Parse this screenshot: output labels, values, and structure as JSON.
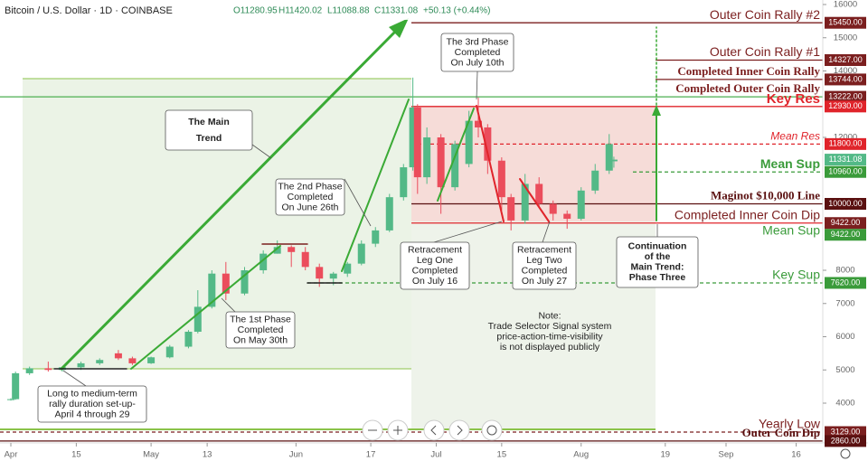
{
  "chart_data": {
    "type": "candlestick",
    "header": {
      "symbol": "Bitcoin / U.S. Dollar · 1D · COINBASE",
      "open": "O11280.95",
      "high": "H11420.02",
      "low": "L11088.88",
      "close": "C11331.08",
      "change": "+50.13 (+0.44%)"
    },
    "x": [
      "Apr 1",
      "Apr 2",
      "Apr 5",
      "Apr 9",
      "Apr 12",
      "Apr 16",
      "Apr 20",
      "Apr 24",
      "Apr 27",
      "May 1",
      "May 5",
      "May 9",
      "May 11",
      "May 14",
      "May 17",
      "May 21",
      "May 25",
      "May 28",
      "May 31",
      "Jun 3",
      "Jun 6",
      "Jun 9",
      "Jun 12",
      "Jun 15",
      "Jun 18",
      "Jun 21",
      "Jun 24",
      "Jun 26",
      "Jun 27",
      "Jun 29",
      "Jul 2",
      "Jul 5",
      "Jul 8",
      "Jul 10",
      "Jul 12",
      "Jul 15",
      "Jul 17",
      "Jul 20",
      "Jul 23",
      "Jul 26",
      "Jul 29",
      "Aug 1",
      "Aug 4",
      "Aug 7",
      "Aug 8"
    ],
    "open": [
      4100,
      4120,
      4900,
      5050,
      5000,
      5080,
      5200,
      5500,
      5350,
      5200,
      5380,
      5700,
      6150,
      6900,
      7900,
      7300,
      8000,
      8500,
      8700,
      8550,
      8100,
      7750,
      7900,
      8200,
      8800,
      9200,
      10200,
      11100,
      12900,
      10800,
      12000,
      10500,
      11200,
      12500,
      12300,
      11300,
      10200,
      9500,
      10600,
      10000,
      9700,
      9550,
      10400,
      11000,
      11280.95
    ],
    "high": [
      4150,
      4950,
      5100,
      5250,
      5100,
      5250,
      5350,
      5600,
      5400,
      5400,
      5750,
      6200,
      7400,
      8000,
      8250,
      8100,
      8600,
      8900,
      8750,
      8700,
      8200,
      7950,
      8250,
      8900,
      9300,
      10300,
      11200,
      13800,
      13000,
      12300,
      12100,
      11900,
      12800,
      13200,
      12400,
      11400,
      10300,
      10900,
      10800,
      10100,
      9800,
      10500,
      11200,
      12100,
      11420.02
    ],
    "low": [
      4080,
      4100,
      4850,
      4950,
      4950,
      5000,
      5150,
      5300,
      5150,
      5180,
      5350,
      5650,
      6100,
      6850,
      7100,
      7250,
      7900,
      8500,
      8100,
      8000,
      7500,
      7550,
      7800,
      8150,
      8700,
      9150,
      10100,
      11000,
      10300,
      10600,
      9700,
      10400,
      11100,
      12000,
      10900,
      9800,
      9200,
      9400,
      9900,
      9500,
      9250,
      9500,
      10300,
      10900,
      11088.88
    ],
    "close": [
      4120,
      4900,
      5050,
      5000,
      5080,
      5200,
      5300,
      5350,
      5200,
      5380,
      5700,
      6150,
      6900,
      7900,
      7300,
      8000,
      8500,
      8700,
      8550,
      8100,
      7750,
      7900,
      8200,
      8800,
      9200,
      10200,
      11100,
      12900,
      10800,
      12000,
      10500,
      11800,
      12500,
      12300,
      11300,
      10200,
      9500,
      10600,
      10000,
      9700,
      9550,
      10400,
      11000,
      11800,
      11331.08
    ],
    "up_color": "#53b987",
    "down_color": "#eb4d5c",
    "ylim": [
      2803,
      16136
    ],
    "yticks": [
      4000,
      5000,
      6000,
      7000,
      8000,
      12000,
      14000,
      15000,
      16000
    ],
    "xticks": [
      {
        "value": "Apr 1",
        "label": "Apr"
      },
      {
        "value": "Apr 15",
        "label": "15"
      },
      {
        "value": "May 1",
        "label": "May"
      },
      {
        "value": "May 13",
        "label": "13"
      },
      {
        "value": "Jun 1",
        "label": "Jun"
      },
      {
        "value": "Jun 17",
        "label": "17"
      },
      {
        "value": "Jul 1",
        "label": "Jul"
      },
      {
        "value": "Jul 15",
        "label": "15"
      },
      {
        "value": "Aug 1",
        "label": "Aug"
      },
      {
        "value": "Aug 19",
        "label": "19"
      },
      {
        "value": "Sep 1",
        "label": "Sep"
      },
      {
        "value": "Sep 16",
        "label": "16"
      }
    ],
    "current_price": 11331.08,
    "levels": [
      {
        "label": "Outer Coin Rally #2",
        "value": 15450,
        "value_label": "15450.00",
        "color": "#7b1f1f"
      },
      {
        "label": "Outer Coin Rally #1",
        "value": 14327,
        "value_label": "14327.00",
        "color": "#7b1f1f"
      },
      {
        "label": "Completed Inner Coin Rally",
        "value": 13744,
        "value_label": "13744.00",
        "color": "#7b1f1f"
      },
      {
        "label": "Completed Outer Coin Rally",
        "value": 13222,
        "value_label": "13222.00",
        "color": "#7b1f1f",
        "line_color": "#4caf50"
      },
      {
        "label": "Key Res",
        "value": 12930,
        "value_label": "12930.00",
        "color": "#e0242b"
      },
      {
        "label": "Mean Res",
        "value": 11800,
        "value_label": "11800.00",
        "color": "#e0242b",
        "dashed": true
      },
      {
        "label": "Mean Sup",
        "value": 10960,
        "value_label": "10960.00",
        "color": "#3a9b3a",
        "dashed": true
      },
      {
        "label": "Maginot $10,000 Line",
        "value": 10000,
        "value_label": "10000.00",
        "color": "#5a1010"
      },
      {
        "label": "Completed Inner Coin Dip",
        "value": 9422,
        "value_label": "9422.00",
        "color": "#7b1f1f",
        "line_color": "#e0242b"
      },
      {
        "label": "Mean Sup",
        "value": 9422,
        "value_label": "9422.00",
        "color": "#3a9b3a",
        "dashed": true
      },
      {
        "label": "Key Sup",
        "value": 7620,
        "value_label": "7620.00",
        "color": "#3a9b3a",
        "dashed": true
      },
      {
        "label": "Yearly Low",
        "value": 3129,
        "value_label": "3129.00",
        "color": "#7b1f1f",
        "dashed": true
      },
      {
        "label": "Outer Coin Dip",
        "value": 2860,
        "value_label": "2860.00",
        "color": "#5a1010"
      }
    ],
    "annotations": {
      "main_trend": [
        "The Main",
        "Trend"
      ],
      "phase3": [
        "The 3rd Phase",
        "Completed",
        "On July 10th"
      ],
      "phase2": [
        "The 2nd Phase",
        "Completed",
        "On June 26th"
      ],
      "phase1": [
        "The 1st Phase",
        "Completed",
        "On May 30th"
      ],
      "leg1": [
        "Retracement",
        "Leg One",
        "Completed",
        "On July 16"
      ],
      "leg2": [
        "Retracement",
        "Leg Two",
        "Completed",
        "On July 27"
      ],
      "setup": [
        "Long to medium-term",
        "rally duration set-up-",
        "April 4 through 29"
      ],
      "note": [
        "Note:",
        "Trade Selector Signal system",
        "price-action-time-visibility",
        "is not displayed publicly"
      ],
      "continuation": [
        "Continuation",
        "of the",
        "Main Trend:",
        "Phase Three"
      ]
    }
  }
}
